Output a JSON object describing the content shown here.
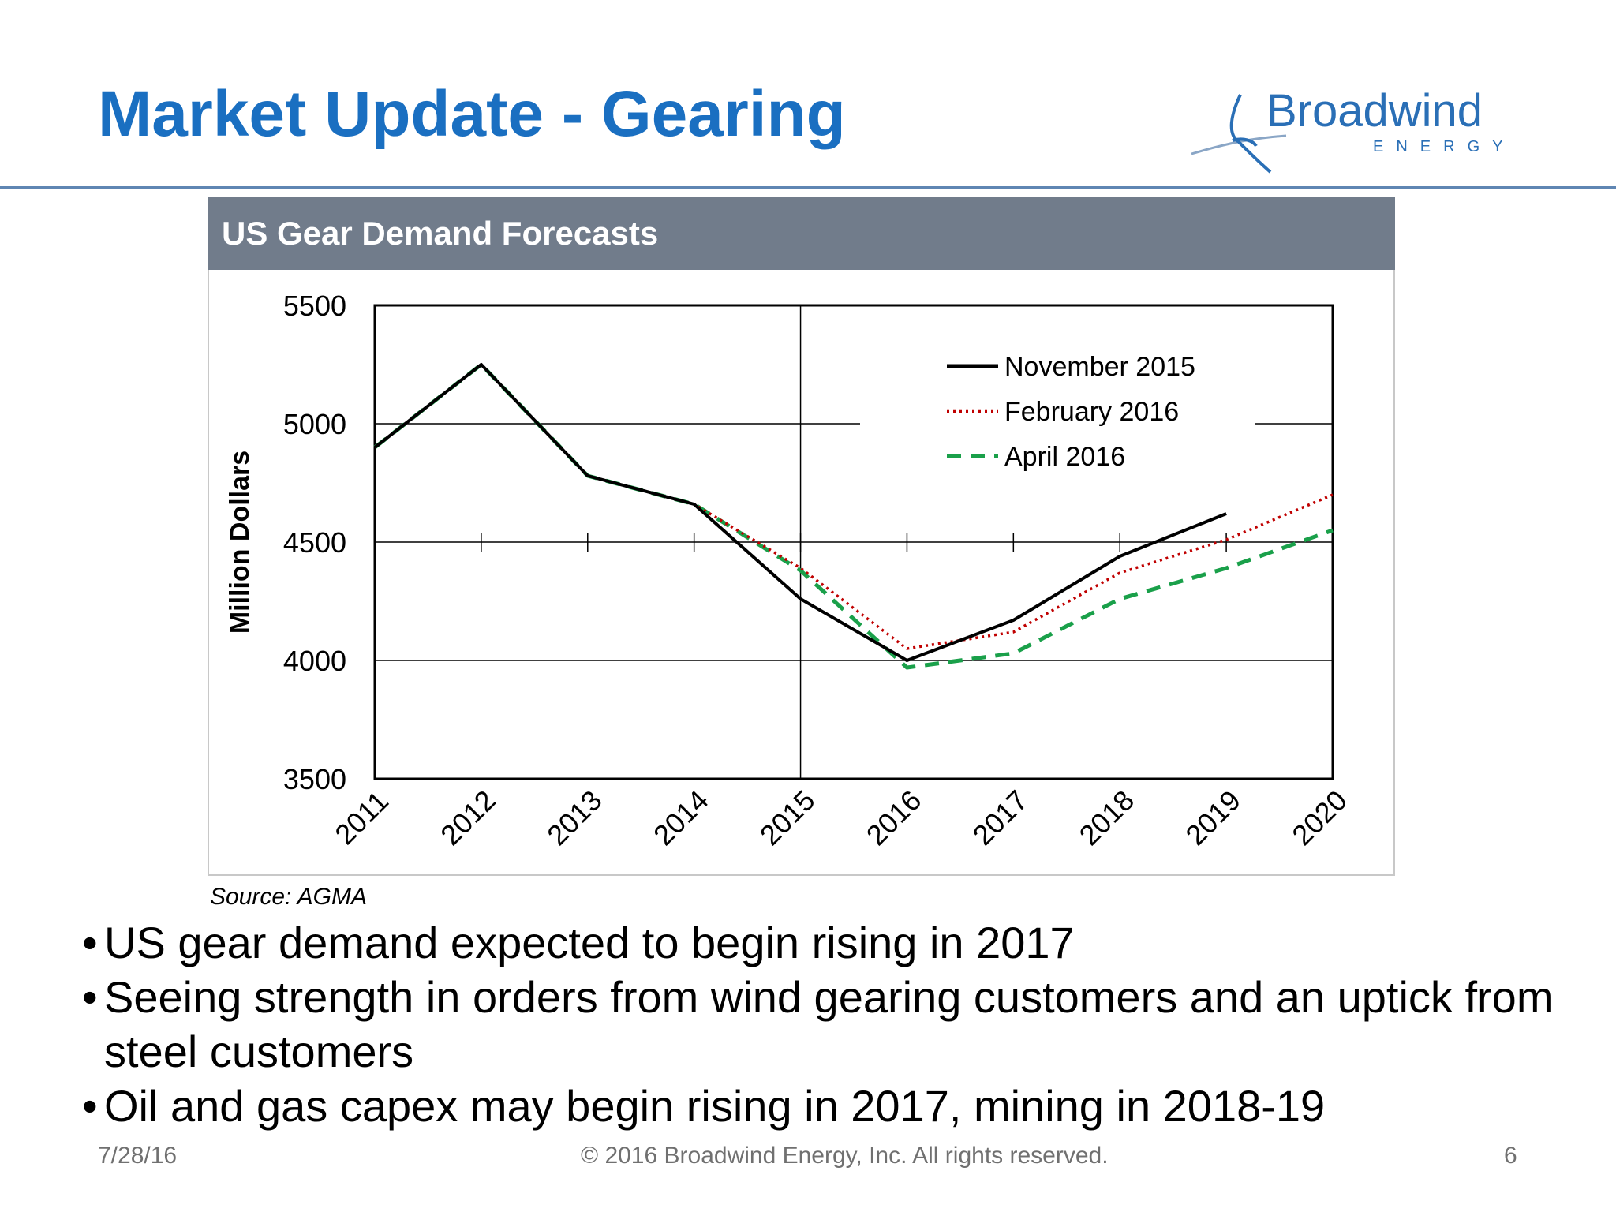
{
  "slide": {
    "title": "Market Update - Gearing",
    "logo": {
      "name": "Broadwind",
      "tagline": "ENERGY",
      "color": "#2a6fb6"
    },
    "panel_title": "US Gear Demand Forecasts",
    "source": "Source: AGMA",
    "bullets": [
      "US gear demand expected to begin rising in 2017",
      "Seeing strength in orders from wind gearing customers and an uptick from steel customers",
      "Oil and gas capex may begin rising in 2017, mining in 2018-19"
    ],
    "footer": {
      "date": "7/28/16",
      "copyright": "© 2016 Broadwind Energy, Inc. All rights reserved.",
      "page": "6"
    }
  },
  "chart_data": {
    "type": "line",
    "title": "US Gear Demand Forecasts",
    "ylabel": "Million Dollars",
    "xlabel": "",
    "categories": [
      "2011",
      "2012",
      "2013",
      "2014",
      "2015",
      "2016",
      "2017",
      "2018",
      "2019",
      "2020"
    ],
    "ylim": [
      3500,
      5500
    ],
    "yticks": [
      3500,
      4000,
      4500,
      5000,
      5500
    ],
    "legend_position": "top-right",
    "series": [
      {
        "name": "November 2015",
        "style": "solid",
        "color": "#000000",
        "values": [
          4900,
          5250,
          4780,
          4660,
          4260,
          4000,
          4170,
          4440,
          4620,
          null
        ]
      },
      {
        "name": "February 2016",
        "style": "dotted",
        "color": "#c00000",
        "values": [
          4900,
          5250,
          4780,
          4660,
          4390,
          4050,
          4120,
          4370,
          4510,
          4700
        ]
      },
      {
        "name": "April 2016",
        "style": "dashed",
        "color": "#1aa04a",
        "values": [
          4900,
          5250,
          4780,
          4660,
          4380,
          3970,
          4030,
          4260,
          4390,
          4550
        ]
      }
    ]
  }
}
